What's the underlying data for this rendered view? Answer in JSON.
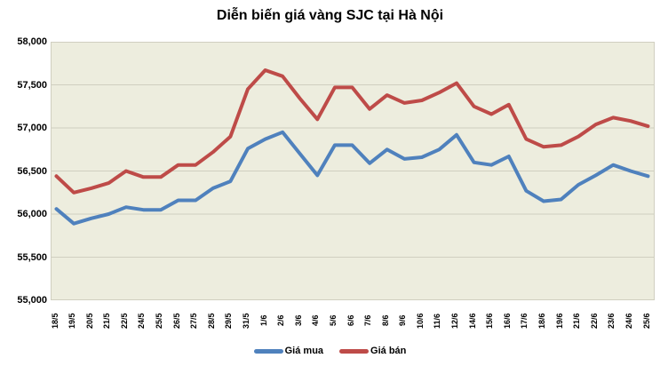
{
  "chart_data": {
    "type": "line",
    "title": "Diễn biến giá vàng SJC tại Hà Nội",
    "categories": [
      "18/5",
      "19/5",
      "20/5",
      "21/5",
      "22/5",
      "24/5",
      "25/5",
      "26/5",
      "27/5",
      "28/5",
      "29/5",
      "31/5",
      "1/6",
      "2/6",
      "3/6",
      "4/6",
      "5/6",
      "6/6",
      "7/6",
      "8/6",
      "9/6",
      "10/6",
      "11/6",
      "12/6",
      "14/6",
      "15/6",
      "16/6",
      "17/6",
      "18/6",
      "19/6",
      "21/6",
      "22/6",
      "23/6",
      "24/6",
      "25/6"
    ],
    "series": [
      {
        "name": "Giá mua",
        "color": "#4f81bd",
        "values": [
          56060,
          55890,
          55950,
          56000,
          56080,
          56050,
          56050,
          56160,
          56160,
          56300,
          56380,
          56760,
          56870,
          56950,
          56700,
          56450,
          56800,
          56800,
          56590,
          56750,
          56640,
          56660,
          56750,
          56920,
          56600,
          56570,
          56670,
          56270,
          56150,
          56170,
          56340,
          56450,
          56570,
          56500,
          56440
        ]
      },
      {
        "name": "Giá bán",
        "color": "#be4b48",
        "values": [
          56440,
          56250,
          56300,
          56360,
          56500,
          56430,
          56430,
          56570,
          56570,
          56720,
          56900,
          57450,
          57670,
          57600,
          57340,
          57100,
          57470,
          57470,
          57220,
          57380,
          57290,
          57320,
          57410,
          57520,
          57250,
          57160,
          57270,
          56870,
          56780,
          56800,
          56900,
          57040,
          57120,
          57080,
          57020
        ]
      }
    ],
    "xlabel": "",
    "ylabel": "",
    "ylim": [
      55000,
      58000
    ],
    "y_tick_step": 500,
    "y_tick_labels": [
      "55,000",
      "55,500",
      "56,000",
      "56,500",
      "57,000",
      "57,500",
      "58,000"
    ],
    "grid": "horizontal",
    "legend_position": "bottom",
    "plot_background": "#ededde",
    "gridline_color": "#d0cfc0"
  }
}
